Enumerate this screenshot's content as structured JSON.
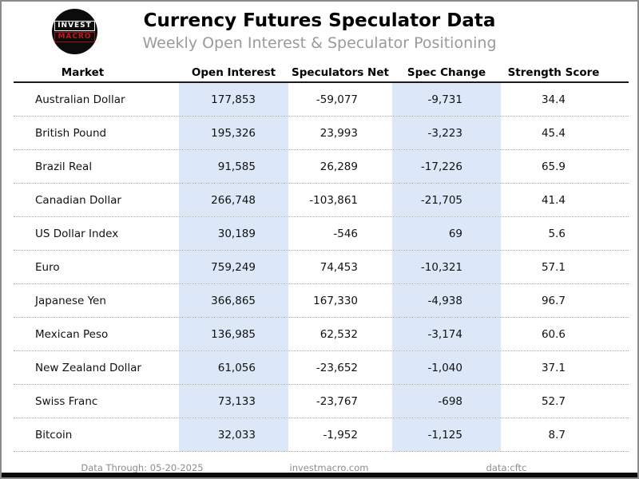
{
  "header": {
    "title": "Currency Futures Speculator Data",
    "subtitle": "Weekly Open Interest & Speculator Positioning",
    "logo": {
      "line1": "INVEST",
      "line2": "MACRO"
    }
  },
  "chart_data": {
    "type": "table",
    "title": "Currency Futures Speculator Data",
    "subtitle": "Weekly Open Interest & Speculator Positioning",
    "columns": [
      "Market",
      "Open Interest",
      "Speculators Net",
      "Spec Change",
      "Strength Score"
    ],
    "highlighted_columns": [
      "Open Interest",
      "Spec Change"
    ],
    "rows": [
      {
        "market": "Australian Dollar",
        "open_interest": "177,853",
        "speculators_net": "-59,077",
        "spec_change": "-9,731",
        "strength_score": "34.4"
      },
      {
        "market": "British Pound",
        "open_interest": "195,326",
        "speculators_net": "23,993",
        "spec_change": "-3,223",
        "strength_score": "45.4"
      },
      {
        "market": "Brazil Real",
        "open_interest": "91,585",
        "speculators_net": "26,289",
        "spec_change": "-17,226",
        "strength_score": "65.9"
      },
      {
        "market": "Canadian Dollar",
        "open_interest": "266,748",
        "speculators_net": "-103,861",
        "spec_change": "-21,705",
        "strength_score": "41.4"
      },
      {
        "market": "US Dollar Index",
        "open_interest": "30,189",
        "speculators_net": "-546",
        "spec_change": "69",
        "strength_score": "5.6"
      },
      {
        "market": "Euro",
        "open_interest": "759,249",
        "speculators_net": "74,453",
        "spec_change": "-10,321",
        "strength_score": "57.1"
      },
      {
        "market": "Japanese Yen",
        "open_interest": "366,865",
        "speculators_net": "167,330",
        "spec_change": "-4,938",
        "strength_score": "96.7"
      },
      {
        "market": "Mexican Peso",
        "open_interest": "136,985",
        "speculators_net": "62,532",
        "spec_change": "-3,174",
        "strength_score": "60.6"
      },
      {
        "market": "New Zealand Dollar",
        "open_interest": "61,056",
        "speculators_net": "-23,652",
        "spec_change": "-1,040",
        "strength_score": "37.1"
      },
      {
        "market": "Swiss Franc",
        "open_interest": "73,133",
        "speculators_net": "-23,767",
        "spec_change": "-698",
        "strength_score": "52.7"
      },
      {
        "market": "Bitcoin",
        "open_interest": "32,033",
        "speculators_net": "-1,952",
        "spec_change": "-1,125",
        "strength_score": "8.7"
      }
    ]
  },
  "footer": {
    "data_through": "Data Through: 05-20-2025",
    "website": "investmacro.com",
    "source": "data:cftc"
  },
  "colors": {
    "column_highlight": "#dce7f8",
    "logo_red": "#c8161d",
    "border_gray": "#8a8a8a",
    "bottom_bar": "#0a0a0a"
  }
}
